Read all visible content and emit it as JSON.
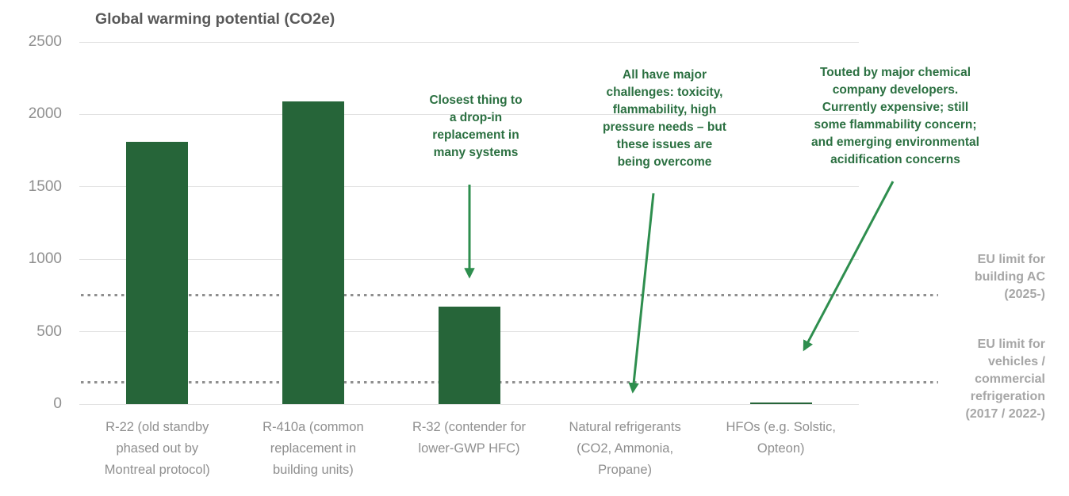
{
  "chart_data": {
    "type": "bar",
    "title": "Global warming potential (CO2e)",
    "categories": [
      "R-22 (old standby\nphased out by\nMontreal protocol)",
      "R-410a (common\nreplacement in\nbuilding units)",
      "R-32 (contender for\nlower-GWP HFC)",
      "Natural refrigerants\n(CO2, Ammonia,\nPropane)",
      "HFOs (e.g. Solstic,\nOpteon)"
    ],
    "category_slugs": [
      "r22",
      "r410a",
      "r32",
      "natural-refrigerants",
      "hfos"
    ],
    "values": [
      1810,
      2088,
      675,
      0,
      10
    ],
    "yticks": [
      0,
      500,
      1000,
      1500,
      2000,
      2500
    ],
    "ylim": [
      0,
      2500
    ],
    "grid": true,
    "legend": "none",
    "limit_lines": [
      {
        "value": 750,
        "label": "EU limit for\nbuilding AC\n(2025-)"
      },
      {
        "value": 150,
        "label": "EU limit for\nvehicles /\ncommercial\nrefrigeration\n(2017 / 2022-)"
      }
    ],
    "annotations": [
      {
        "text": "Closest thing to\na drop-in\nreplacement in\nmany systems",
        "target_category": "R-32 (contender for lower-GWP HFC)"
      },
      {
        "text": "All have major\nchallenges: toxicity,\nflammability, high\npressure needs – but\nthese issues are\nbeing overcome",
        "target_category": "Natural refrigerants (CO2, Ammonia, Propane)"
      },
      {
        "text": "Touted by major chemical\ncompany developers.\nCurrently expensive; still\nsome flammability concern;\nand emerging environmental\nacidification concerns",
        "target_category": "HFOs (e.g. Solstic, Opteon)"
      }
    ]
  },
  "colors": {
    "bar": "#266539",
    "annotation_text": "#2b7041",
    "arrow": "#2e8e4e",
    "axis_text": "#8f8f8f",
    "limit_label_text": "#a6a6a6",
    "dotted_limit_line": "#8f8f8f",
    "gridline": "#e2e2e2",
    "title_text": "#595959"
  }
}
